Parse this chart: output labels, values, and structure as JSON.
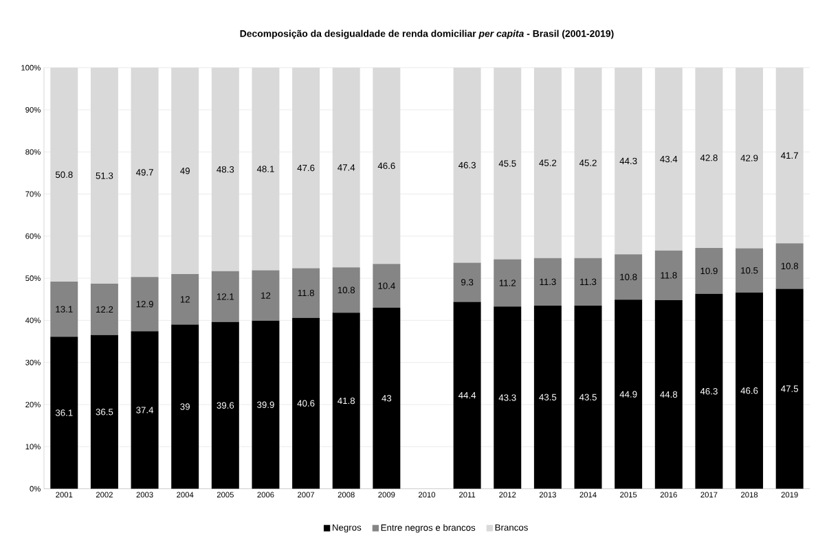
{
  "chart_data": {
    "type": "bar",
    "stacked": true,
    "title": "Decomposição da desigualdade de renda domiciliar *per capita* - Brasil (2001-2019)",
    "categories": [
      "2001",
      "2002",
      "2003",
      "2004",
      "2005",
      "2006",
      "2007",
      "2008",
      "2009",
      "2010",
      "2011",
      "2012",
      "2013",
      "2014",
      "2015",
      "2016",
      "2017",
      "2018",
      "2019"
    ],
    "series": [
      {
        "name": "Negros",
        "color": "#000000",
        "values": [
          36.1,
          36.5,
          37.4,
          39,
          39.6,
          39.9,
          40.6,
          41.8,
          43,
          null,
          44.4,
          43.3,
          43.5,
          43.5,
          44.9,
          44.8,
          46.3,
          46.6,
          47.5
        ]
      },
      {
        "name": "Entre negros e brancos",
        "color": "#858585",
        "values": [
          13.1,
          12.2,
          12.9,
          12,
          12.1,
          12,
          11.8,
          10.8,
          10.4,
          null,
          9.3,
          11.2,
          11.3,
          11.3,
          10.8,
          11.8,
          10.9,
          10.5,
          10.8
        ]
      },
      {
        "name": "Brancos",
        "color": "#d9d9d9",
        "values": [
          50.8,
          51.3,
          49.7,
          49,
          48.3,
          48.1,
          47.6,
          47.4,
          46.6,
          null,
          46.3,
          45.5,
          45.2,
          45.2,
          44.3,
          43.4,
          42.8,
          42.9,
          41.7
        ]
      }
    ],
    "ylim": [
      0,
      100
    ],
    "yticks": [
      {
        "value": 0,
        "label": "0%"
      },
      {
        "value": 10,
        "label": "10%"
      },
      {
        "value": 20,
        "label": "20%"
      },
      {
        "value": 30,
        "label": "30%"
      },
      {
        "value": 40,
        "label": "40%"
      },
      {
        "value": 50,
        "label": "50%"
      },
      {
        "value": 60,
        "label": "60%"
      },
      {
        "value": 70,
        "label": "70%"
      },
      {
        "value": 80,
        "label": "80%"
      },
      {
        "value": 90,
        "label": "90%"
      },
      {
        "value": 100,
        "label": "100%"
      }
    ],
    "grid": "y",
    "legend": "bottom",
    "data_labels": true
  }
}
